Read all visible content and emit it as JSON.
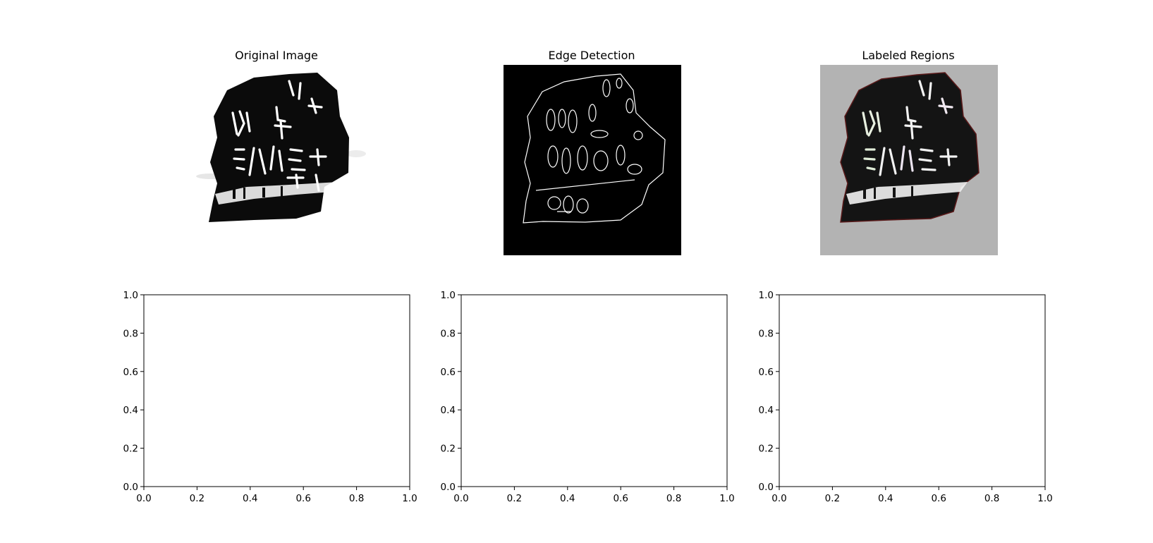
{
  "chart_data": [
    {
      "type": "image",
      "title": "Original Image",
      "content": "rubbing of an inscribed fragment (black with white characters on white background)",
      "colors": {
        "background": "#ffffff",
        "stone": "#0b0b0b",
        "characters": "#ffffff"
      }
    },
    {
      "type": "image",
      "title": "Edge Detection",
      "content": "white edge outlines on black background",
      "colors": {
        "background": "#000000",
        "edges": "#ffffff"
      }
    },
    {
      "type": "image",
      "title": "Labeled Regions",
      "content": "labeled region overlay on gray background",
      "colors": {
        "background": "#b3b3b3",
        "stone": "#141414",
        "characters": "#f2f2f2"
      }
    },
    {
      "type": "scatter",
      "title": "",
      "xlabel": "",
      "ylabel": "",
      "xlim": [
        0,
        1
      ],
      "ylim": [
        0,
        1
      ],
      "xticks": [
        "0.0",
        "0.2",
        "0.4",
        "0.6",
        "0.8",
        "1.0"
      ],
      "yticks": [
        "0.0",
        "0.2",
        "0.4",
        "0.6",
        "0.8",
        "1.0"
      ],
      "series": []
    },
    {
      "type": "scatter",
      "title": "",
      "xlabel": "",
      "ylabel": "",
      "xlim": [
        0,
        1
      ],
      "ylim": [
        0,
        1
      ],
      "xticks": [
        "0.0",
        "0.2",
        "0.4",
        "0.6",
        "0.8",
        "1.0"
      ],
      "yticks": [
        "0.0",
        "0.2",
        "0.4",
        "0.6",
        "0.8",
        "1.0"
      ],
      "series": []
    },
    {
      "type": "scatter",
      "title": "",
      "xlabel": "",
      "ylabel": "",
      "xlim": [
        0,
        1
      ],
      "ylim": [
        0,
        1
      ],
      "xticks": [
        "0.0",
        "0.2",
        "0.4",
        "0.6",
        "0.8",
        "1.0"
      ],
      "yticks": [
        "0.0",
        "0.2",
        "0.4",
        "0.6",
        "0.8",
        "1.0"
      ],
      "series": []
    }
  ]
}
